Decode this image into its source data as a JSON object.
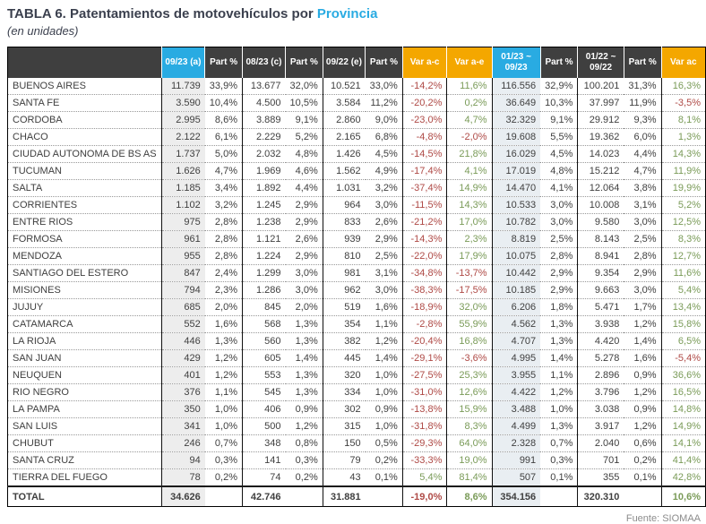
{
  "title": {
    "prefix": "TABLA 6. Patentamientos de motovehículos por ",
    "highlight": "Provincia",
    "subtitle": "(en unidades)"
  },
  "source": "Fuente: SIOMAA",
  "colors": {
    "header_dark": "#3F3F3F",
    "header_cyan": "#29ABE2",
    "header_orange": "#F4A700",
    "negative_text": "#AF4A46",
    "positive_text": "#7A9B58",
    "band_sep23": "#EDEDED",
    "band_ytd23": "#E9EEF2",
    "title_accent": "#29ABE2"
  },
  "table": {
    "headers": [
      {
        "label": "",
        "accent": "dark"
      },
      {
        "label": "09/23 (a)",
        "accent": "cyan"
      },
      {
        "label": "Part %",
        "accent": "dark"
      },
      {
        "label": "08/23 (c)",
        "accent": "dark"
      },
      {
        "label": "Part %",
        "accent": "dark"
      },
      {
        "label": "09/22 (e)",
        "accent": "dark"
      },
      {
        "label": "Part %",
        "accent": "dark"
      },
      {
        "label": "Var a-c",
        "accent": "orange"
      },
      {
        "label": "Var a-e",
        "accent": "orange"
      },
      {
        "label": "01/23 ~\n09/23",
        "accent": "cyan"
      },
      {
        "label": "Part %",
        "accent": "dark"
      },
      {
        "label": "01/22 ~\n09/22",
        "accent": "dark"
      },
      {
        "label": "Part %",
        "accent": "dark"
      },
      {
        "label": "Var ac",
        "accent": "orange"
      }
    ],
    "column_keys": [
      "province",
      "sep23",
      "sep23-part",
      "aug23",
      "aug23-part",
      "sep22",
      "sep22-part",
      "var-a-c",
      "var-a-e",
      "ytd-2023",
      "ytd-2023-part",
      "ytd-2022",
      "ytd-2022-part",
      "var-ac"
    ],
    "var_column_indexes": [
      7,
      8,
      13
    ],
    "rows": [
      [
        "BUENOS AIRES",
        "11.739",
        "33,9%",
        "13.677",
        "32,0%",
        "10.521",
        "33,0%",
        "-14,2%",
        "11,6%",
        "116.556",
        "32,9%",
        "100.201",
        "31,3%",
        "16,3%"
      ],
      [
        "SANTA FE",
        "3.590",
        "10,4%",
        "4.500",
        "10,5%",
        "3.584",
        "11,2%",
        "-20,2%",
        "0,2%",
        "36.649",
        "10,3%",
        "37.997",
        "11,9%",
        "-3,5%"
      ],
      [
        "CORDOBA",
        "2.995",
        "8,6%",
        "3.889",
        "9,1%",
        "2.860",
        "9,0%",
        "-23,0%",
        "4,7%",
        "32.329",
        "9,1%",
        "29.912",
        "9,3%",
        "8,1%"
      ],
      [
        "CHACO",
        "2.122",
        "6,1%",
        "2.229",
        "5,2%",
        "2.165",
        "6,8%",
        "-4,8%",
        "-2,0%",
        "19.608",
        "5,5%",
        "19.362",
        "6,0%",
        "1,3%"
      ],
      [
        "CIUDAD AUTONOMA DE BS AS",
        "1.737",
        "5,0%",
        "2.032",
        "4,8%",
        "1.426",
        "4,5%",
        "-14,5%",
        "21,8%",
        "16.029",
        "4,5%",
        "14.023",
        "4,4%",
        "14,3%"
      ],
      [
        "TUCUMAN",
        "1.626",
        "4,7%",
        "1.969",
        "4,6%",
        "1.562",
        "4,9%",
        "-17,4%",
        "4,1%",
        "17.019",
        "4,8%",
        "15.212",
        "4,7%",
        "11,9%"
      ],
      [
        "SALTA",
        "1.185",
        "3,4%",
        "1.892",
        "4,4%",
        "1.031",
        "3,2%",
        "-37,4%",
        "14,9%",
        "14.470",
        "4,1%",
        "12.064",
        "3,8%",
        "19,9%"
      ],
      [
        "CORRIENTES",
        "1.102",
        "3,2%",
        "1.245",
        "2,9%",
        "964",
        "3,0%",
        "-11,5%",
        "14,3%",
        "10.533",
        "3,0%",
        "10.008",
        "3,1%",
        "5,2%"
      ],
      [
        "ENTRE RIOS",
        "975",
        "2,8%",
        "1.238",
        "2,9%",
        "833",
        "2,6%",
        "-21,2%",
        "17,0%",
        "10.782",
        "3,0%",
        "9.580",
        "3,0%",
        "12,5%"
      ],
      [
        "FORMOSA",
        "961",
        "2,8%",
        "1.121",
        "2,6%",
        "939",
        "2,9%",
        "-14,3%",
        "2,3%",
        "8.819",
        "2,5%",
        "8.143",
        "2,5%",
        "8,3%"
      ],
      [
        "MENDOZA",
        "955",
        "2,8%",
        "1.224",
        "2,9%",
        "810",
        "2,5%",
        "-22,0%",
        "17,9%",
        "10.075",
        "2,8%",
        "8.941",
        "2,8%",
        "12,7%"
      ],
      [
        "SANTIAGO DEL ESTERO",
        "847",
        "2,4%",
        "1.299",
        "3,0%",
        "981",
        "3,1%",
        "-34,8%",
        "-13,7%",
        "10.442",
        "2,9%",
        "9.354",
        "2,9%",
        "11,6%"
      ],
      [
        "MISIONES",
        "794",
        "2,3%",
        "1.286",
        "3,0%",
        "962",
        "3,0%",
        "-38,3%",
        "-17,5%",
        "10.185",
        "2,9%",
        "9.663",
        "3,0%",
        "5,4%"
      ],
      [
        "JUJUY",
        "685",
        "2,0%",
        "845",
        "2,0%",
        "519",
        "1,6%",
        "-18,9%",
        "32,0%",
        "6.206",
        "1,8%",
        "5.471",
        "1,7%",
        "13,4%"
      ],
      [
        "CATAMARCA",
        "552",
        "1,6%",
        "568",
        "1,3%",
        "354",
        "1,1%",
        "-2,8%",
        "55,9%",
        "4.562",
        "1,3%",
        "3.938",
        "1,2%",
        "15,8%"
      ],
      [
        "LA RIOJA",
        "446",
        "1,3%",
        "560",
        "1,3%",
        "382",
        "1,2%",
        "-20,4%",
        "16,8%",
        "4.707",
        "1,3%",
        "4.420",
        "1,4%",
        "6,5%"
      ],
      [
        "SAN JUAN",
        "429",
        "1,2%",
        "605",
        "1,4%",
        "445",
        "1,4%",
        "-29,1%",
        "-3,6%",
        "4.995",
        "1,4%",
        "5.278",
        "1,6%",
        "-5,4%"
      ],
      [
        "NEUQUEN",
        "401",
        "1,2%",
        "553",
        "1,3%",
        "320",
        "1,0%",
        "-27,5%",
        "25,3%",
        "3.955",
        "1,1%",
        "2.896",
        "0,9%",
        "36,6%"
      ],
      [
        "RIO NEGRO",
        "376",
        "1,1%",
        "545",
        "1,3%",
        "334",
        "1,0%",
        "-31,0%",
        "12,6%",
        "4.422",
        "1,2%",
        "3.796",
        "1,2%",
        "16,5%"
      ],
      [
        "LA PAMPA",
        "350",
        "1,0%",
        "406",
        "0,9%",
        "302",
        "0,9%",
        "-13,8%",
        "15,9%",
        "3.488",
        "1,0%",
        "3.038",
        "0,9%",
        "14,8%"
      ],
      [
        "SAN LUIS",
        "341",
        "1,0%",
        "500",
        "1,2%",
        "315",
        "1,0%",
        "-31,8%",
        "8,3%",
        "4.499",
        "1,3%",
        "3.917",
        "1,2%",
        "14,9%"
      ],
      [
        "CHUBUT",
        "246",
        "0,7%",
        "348",
        "0,8%",
        "150",
        "0,5%",
        "-29,3%",
        "64,0%",
        "2.328",
        "0,7%",
        "2.040",
        "0,6%",
        "14,1%"
      ],
      [
        "SANTA CRUZ",
        "94",
        "0,3%",
        "141",
        "0,3%",
        "79",
        "0,2%",
        "-33,3%",
        "19,0%",
        "991",
        "0,3%",
        "701",
        "0,2%",
        "41,4%"
      ],
      [
        "TIERRA DEL FUEGO",
        "78",
        "0,2%",
        "74",
        "0,2%",
        "43",
        "0,1%",
        "5,4%",
        "81,4%",
        "507",
        "0,1%",
        "355",
        "0,1%",
        "42,8%"
      ]
    ],
    "total_row": [
      "TOTAL",
      "34.626",
      "",
      "42.746",
      "",
      "31.881",
      "",
      "-19,0%",
      "8,6%",
      "354.156",
      "",
      "320.310",
      "",
      "10,6%"
    ]
  }
}
